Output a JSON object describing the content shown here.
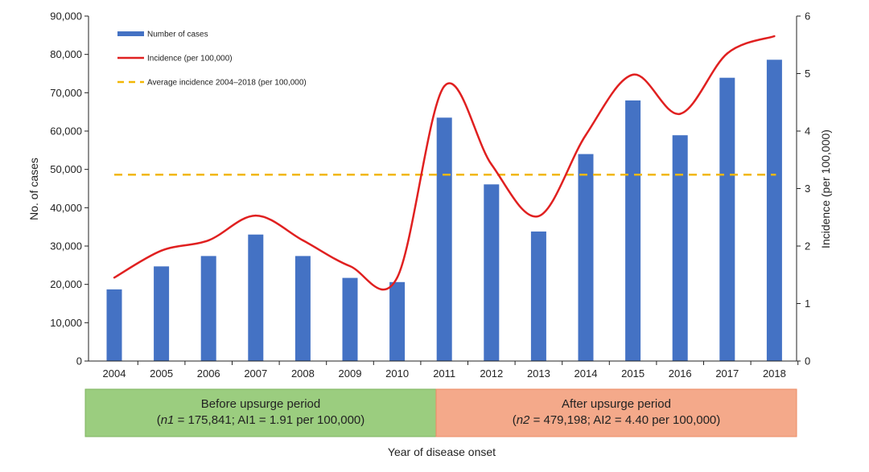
{
  "colors": {
    "bar": "#4472c4",
    "line": "#e02020",
    "average_line": "#f2b705",
    "period_before_fill": "#9bcd7f",
    "period_before_border": "#7fb462",
    "period_after_fill": "#f4a98a",
    "period_after_border": "#ec8c64",
    "axis": "#222222"
  },
  "periods": [
    {
      "line1": "Before upsurge period",
      "line2_prefix": "(",
      "n_label": "n1",
      "line2_rest": " = 175,841; AI1 = 1.91 per 100,000)",
      "color": "green",
      "start": "2004",
      "end": "2010"
    },
    {
      "line1": "After upsurge period",
      "line2_prefix": "(",
      "n_label": "n2",
      "line2_rest": " = 479,198; AI2 = 4.40 per 100,000)",
      "color": "orange",
      "start": "2011",
      "end": "2018"
    }
  ],
  "chart_data": {
    "type": "bar",
    "title": "",
    "xlabel": "Year of disease onset",
    "ylabel": "No. of cases",
    "y2label": "Incidence (per 100,000)",
    "categories": [
      "2004",
      "2005",
      "2006",
      "2007",
      "2008",
      "2009",
      "2010",
      "2011",
      "2012",
      "2013",
      "2014",
      "2015",
      "2016",
      "2017",
      "2018"
    ],
    "ylim": [
      0,
      90000
    ],
    "y2lim": [
      0,
      6
    ],
    "y_ticks": [
      "0",
      "10,000",
      "20,000",
      "30,000",
      "40,000",
      "50,000",
      "60,000",
      "70,000",
      "80,000",
      "90,000"
    ],
    "y_tick_values": [
      0,
      10000,
      20000,
      30000,
      40000,
      50000,
      60000,
      70000,
      80000,
      90000
    ],
    "y2_ticks": [
      "0",
      "1",
      "2",
      "3",
      "4",
      "5",
      "6"
    ],
    "y2_tick_values": [
      0,
      1,
      2,
      3,
      4,
      5,
      6
    ],
    "grid": false,
    "legend_position": "top-left",
    "series": [
      {
        "name": "Number of cases",
        "type": "bar",
        "axis": "left",
        "values": [
          18700,
          24700,
          27400,
          33000,
          27400,
          21700,
          20600,
          63500,
          46100,
          33800,
          54000,
          68000,
          58900,
          73900,
          78600
        ]
      },
      {
        "name": "Incidence (per 100,000)",
        "type": "line",
        "smooth": true,
        "axis": "right",
        "values": [
          1.45,
          1.92,
          2.1,
          2.53,
          2.1,
          1.65,
          1.45,
          4.78,
          3.42,
          2.52,
          3.93,
          4.98,
          4.3,
          5.35,
          5.65
        ]
      },
      {
        "name": "Average incidence 2004–2018 (per 100,000)",
        "type": "hline",
        "axis": "right",
        "dashed": true,
        "value": 3.24,
        "from": "2004",
        "to": "2018"
      }
    ]
  }
}
